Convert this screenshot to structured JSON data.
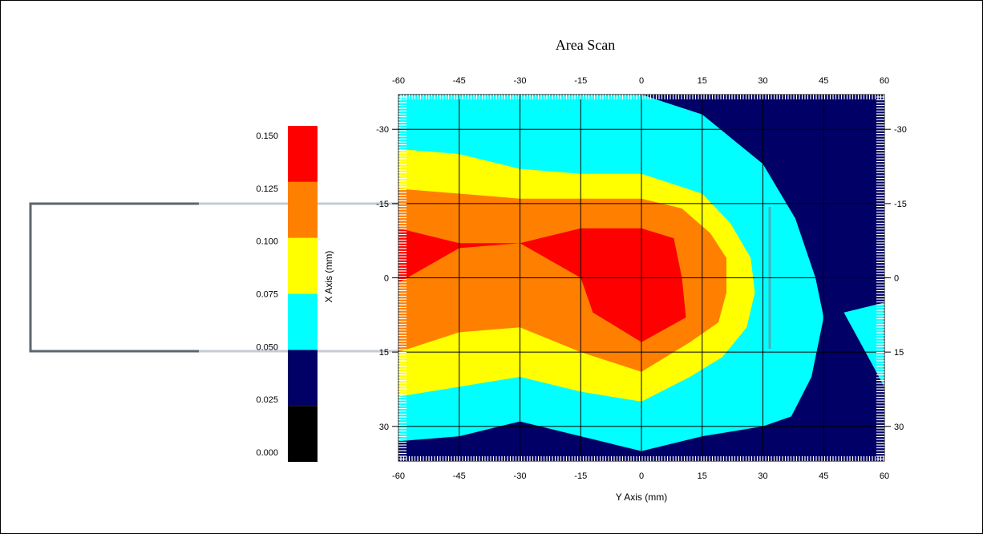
{
  "chart_data": {
    "type": "heatmap",
    "title": "Area Scan",
    "xlabel": "Y Axis (mm)",
    "ylabel": "X Axis (mm)",
    "x_ticks": [
      "-60",
      "-45",
      "-30",
      "-15",
      "0",
      "15",
      "30",
      "45",
      "60"
    ],
    "y_ticks": [
      "-30",
      "-15",
      "0",
      "15",
      "30"
    ],
    "xlim": [
      -60,
      60
    ],
    "ylim": [
      -37,
      37
    ],
    "grid": true,
    "legend": {
      "placement": "left",
      "labels": [
        "0.150",
        "0.125",
        "0.100",
        "0.075",
        "0.050",
        "0.025",
        "0.000"
      ],
      "bins": [
        {
          "range": [
            0.0,
            0.025
          ],
          "color": "#000000"
        },
        {
          "range": [
            0.025,
            0.05
          ],
          "color": "#000066"
        },
        {
          "range": [
            0.05,
            0.075
          ],
          "color": "#00ffff"
        },
        {
          "range": [
            0.075,
            0.1
          ],
          "color": "#ffff00"
        },
        {
          "range": [
            0.1,
            0.125
          ],
          "color": "#ff8000"
        },
        {
          "range": [
            0.125,
            0.15
          ],
          "color": "#ff0000"
        }
      ]
    },
    "contour_regions": [
      {
        "level": "0.025-0.050",
        "color": "#000066",
        "points": [
          [
            -60,
            -37
          ],
          [
            60,
            -37
          ],
          [
            60,
            37
          ],
          [
            -60,
            37
          ]
        ]
      },
      {
        "level": "0.050-0.075",
        "color": "#00ffff",
        "points": [
          [
            -60,
            -37
          ],
          [
            0,
            -37
          ],
          [
            15,
            -33
          ],
          [
            30,
            -23
          ],
          [
            38,
            -12
          ],
          [
            43,
            0
          ],
          [
            45,
            8
          ],
          [
            42,
            20
          ],
          [
            37,
            28
          ],
          [
            30,
            30
          ],
          [
            15,
            32
          ],
          [
            0,
            35
          ],
          [
            -15,
            32
          ],
          [
            -30,
            29
          ],
          [
            -45,
            32
          ],
          [
            -60,
            33
          ]
        ]
      },
      {
        "level": "0.050-0.075",
        "color": "#00ffff",
        "points": [
          [
            50,
            7
          ],
          [
            60,
            5
          ],
          [
            60,
            22
          ]
        ]
      },
      {
        "level": "0.075-0.100",
        "color": "#ffff00",
        "points": [
          [
            -60,
            -26
          ],
          [
            -45,
            -25
          ],
          [
            -30,
            -22
          ],
          [
            -15,
            -21
          ],
          [
            0,
            -21
          ],
          [
            15,
            -17
          ],
          [
            22,
            -11
          ],
          [
            27,
            -4
          ],
          [
            28,
            3
          ],
          [
            26,
            10
          ],
          [
            20,
            16
          ],
          [
            12,
            20
          ],
          [
            0,
            25
          ],
          [
            -15,
            23
          ],
          [
            -30,
            20
          ],
          [
            -45,
            22
          ],
          [
            -60,
            24
          ]
        ]
      },
      {
        "level": "0.100-0.125",
        "color": "#ff8000",
        "points": [
          [
            -60,
            -18
          ],
          [
            -45,
            -17
          ],
          [
            -30,
            -16
          ],
          [
            -15,
            -16
          ],
          [
            0,
            -16
          ],
          [
            10,
            -14
          ],
          [
            17,
            -9
          ],
          [
            21,
            -4
          ],
          [
            21,
            3
          ],
          [
            19,
            9
          ],
          [
            12,
            13
          ],
          [
            0,
            19
          ],
          [
            -15,
            15
          ],
          [
            -30,
            10
          ],
          [
            -45,
            11
          ],
          [
            -60,
            15
          ]
        ]
      },
      {
        "level": "0.125-0.150",
        "color": "#ff0000",
        "points": [
          [
            -60,
            -10
          ],
          [
            -45,
            -7
          ],
          [
            -30,
            -7
          ],
          [
            -15,
            -10
          ],
          [
            0,
            -10
          ],
          [
            8,
            -8
          ],
          [
            10,
            0
          ],
          [
            11,
            8
          ],
          [
            0,
            13
          ],
          [
            -12,
            7
          ],
          [
            -15,
            0
          ],
          [
            -30,
            -7
          ],
          [
            -45,
            -6
          ],
          [
            -60,
            1
          ]
        ]
      }
    ]
  }
}
